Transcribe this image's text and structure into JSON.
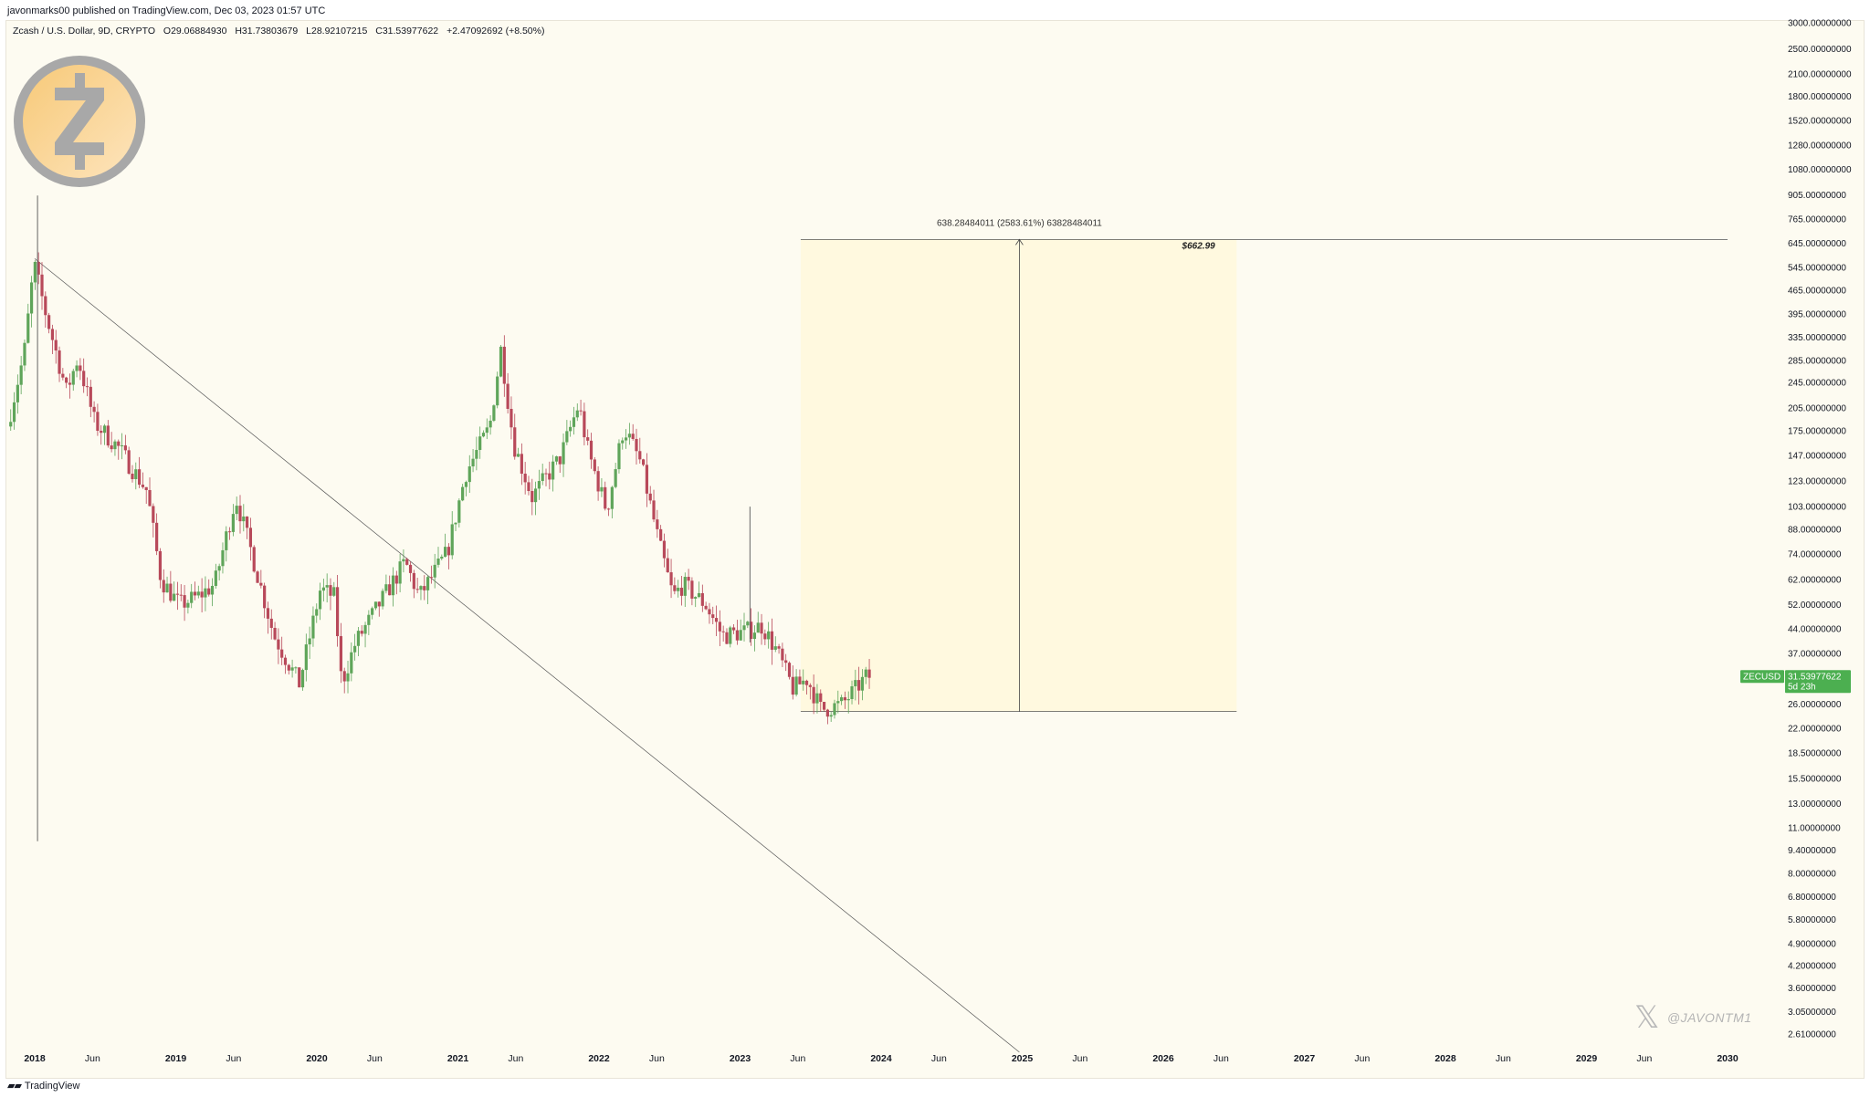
{
  "header": {
    "publisher": "javonmarks00 published on TradingView.com, Dec 03, 2023 01:57 UTC",
    "symbol": "Zcash / U.S. Dollar, 9D, CRYPTO",
    "open": "O29.06884930",
    "high": "H31.73803679",
    "low": "L28.92107215",
    "close": "C31.53977622",
    "change": "+2.47092692 (+8.50%)"
  },
  "footer": {
    "brand": "TradingView"
  },
  "watermark": {
    "handle": "@JAVONTM1"
  },
  "logo": {
    "icon": "zcash-logo-icon"
  },
  "chart_data": {
    "type": "candlestick",
    "symbol": "ZECUSD",
    "scale": "log",
    "colors": {
      "up": "#5fa55a",
      "down": "#b8495a",
      "background": "#fdfbf1",
      "projection": "#fff8dc"
    },
    "y_ticks": [
      "3000.00000000",
      "2500.00000000",
      "2100.00000000",
      "1800.00000000",
      "1520.00000000",
      "1280.00000000",
      "1080.00000000",
      "905.00000000",
      "765.00000000",
      "645.00000000",
      "545.00000000",
      "465.00000000",
      "395.00000000",
      "335.00000000",
      "285.00000000",
      "245.00000000",
      "205.00000000",
      "175.00000000",
      "147.00000000",
      "123.00000000",
      "103.00000000",
      "88.00000000",
      "74.00000000",
      "62.00000000",
      "52.00000000",
      "44.00000000",
      "37.00000000",
      "26.00000000",
      "22.00000000",
      "18.50000000",
      "15.50000000",
      "13.00000000",
      "11.00000000",
      "9.40000000",
      "8.00000000",
      "6.80000000",
      "5.80000000",
      "4.90000000",
      "4.20000000",
      "3.60000000",
      "3.05000000",
      "2.61000000"
    ],
    "x_labels": [
      {
        "label": "2018",
        "t": 2018.0,
        "year": true
      },
      {
        "label": "Jun",
        "t": 2018.41
      },
      {
        "label": "2019",
        "t": 2019.0,
        "year": true
      },
      {
        "label": "Jun",
        "t": 2019.41
      },
      {
        "label": "2020",
        "t": 2020.0,
        "year": true
      },
      {
        "label": "Jun",
        "t": 2020.41
      },
      {
        "label": "2021",
        "t": 2021.0,
        "year": true
      },
      {
        "label": "Jun",
        "t": 2021.41
      },
      {
        "label": "2022",
        "t": 2022.0,
        "year": true
      },
      {
        "label": "Jun",
        "t": 2022.41
      },
      {
        "label": "2023",
        "t": 2023.0,
        "year": true
      },
      {
        "label": "Jun",
        "t": 2023.41
      },
      {
        "label": "2024",
        "t": 2024.0,
        "year": true
      },
      {
        "label": "Jun",
        "t": 2024.41
      },
      {
        "label": "2025",
        "t": 2025.0,
        "year": true
      },
      {
        "label": "Jun",
        "t": 2025.41
      },
      {
        "label": "2026",
        "t": 2026.0,
        "year": true
      },
      {
        "label": "Jun",
        "t": 2026.41
      },
      {
        "label": "2027",
        "t": 2027.0,
        "year": true
      },
      {
        "label": "Jun",
        "t": 2027.41
      },
      {
        "label": "2028",
        "t": 2028.0,
        "year": true
      },
      {
        "label": "Jun",
        "t": 2028.41
      },
      {
        "label": "2029",
        "t": 2029.0,
        "year": true
      },
      {
        "label": "Jun",
        "t": 2029.41
      },
      {
        "label": "2030",
        "t": 2030.0,
        "year": true
      }
    ],
    "anchors": [
      {
        "t": 2017.83,
        "v": 180
      },
      {
        "t": 2017.95,
        "v": 300
      },
      {
        "t": 2018.02,
        "v": 560
      },
      {
        "t": 2018.1,
        "v": 400
      },
      {
        "t": 2018.25,
        "v": 230
      },
      {
        "t": 2018.33,
        "v": 290
      },
      {
        "t": 2018.45,
        "v": 185
      },
      {
        "t": 2018.62,
        "v": 155
      },
      {
        "t": 2018.82,
        "v": 115
      },
      {
        "t": 2018.92,
        "v": 62
      },
      {
        "t": 2019.05,
        "v": 52
      },
      {
        "t": 2019.18,
        "v": 55
      },
      {
        "t": 2019.3,
        "v": 60
      },
      {
        "t": 2019.45,
        "v": 110
      },
      {
        "t": 2019.55,
        "v": 78
      },
      {
        "t": 2019.72,
        "v": 42
      },
      {
        "t": 2019.9,
        "v": 30
      },
      {
        "t": 2020.05,
        "v": 58
      },
      {
        "t": 2020.15,
        "v": 55
      },
      {
        "t": 2020.2,
        "v": 30
      },
      {
        "t": 2020.3,
        "v": 40
      },
      {
        "t": 2020.5,
        "v": 55
      },
      {
        "t": 2020.65,
        "v": 70
      },
      {
        "t": 2020.75,
        "v": 55
      },
      {
        "t": 2020.95,
        "v": 75
      },
      {
        "t": 2021.08,
        "v": 130
      },
      {
        "t": 2021.25,
        "v": 180
      },
      {
        "t": 2021.33,
        "v": 310
      },
      {
        "t": 2021.42,
        "v": 160
      },
      {
        "t": 2021.55,
        "v": 110
      },
      {
        "t": 2021.75,
        "v": 145
      },
      {
        "t": 2021.88,
        "v": 210
      },
      {
        "t": 2021.95,
        "v": 150
      },
      {
        "t": 2022.08,
        "v": 100
      },
      {
        "t": 2022.2,
        "v": 180
      },
      {
        "t": 2022.32,
        "v": 140
      },
      {
        "t": 2022.45,
        "v": 80
      },
      {
        "t": 2022.55,
        "v": 55
      },
      {
        "t": 2022.62,
        "v": 60
      },
      {
        "t": 2022.78,
        "v": 52
      },
      {
        "t": 2022.9,
        "v": 42
      },
      {
        "t": 2023.05,
        "v": 43
      },
      {
        "t": 2023.18,
        "v": 45
      },
      {
        "t": 2023.28,
        "v": 38
      },
      {
        "t": 2023.4,
        "v": 29
      },
      {
        "t": 2023.5,
        "v": 31
      },
      {
        "t": 2023.6,
        "v": 25
      },
      {
        "t": 2023.75,
        "v": 26
      },
      {
        "t": 2023.92,
        "v": 31.5
      }
    ],
    "spikes": [
      {
        "t": 2018.02,
        "high": 900,
        "low": 10
      },
      {
        "t": 2023.07,
        "high": 103,
        "low": 40
      }
    ],
    "trendline": {
      "from": {
        "t": 2018.0,
        "v": 580
      },
      "to": {
        "t": 2024.98,
        "v": 2.3
      }
    },
    "projection": {
      "start_t": 2023.43,
      "end_t": 2026.52,
      "arrow_t": 2024.98,
      "base": 24.7,
      "target": 662.99,
      "label": "638.28484011 (2583.61%) 63828484011",
      "target_line_end_t": 2030.0,
      "target_label": "$662.99"
    },
    "last_price": {
      "symbol": "ZECUSD",
      "value": "31.53977622",
      "countdown": "5d 23h"
    }
  }
}
